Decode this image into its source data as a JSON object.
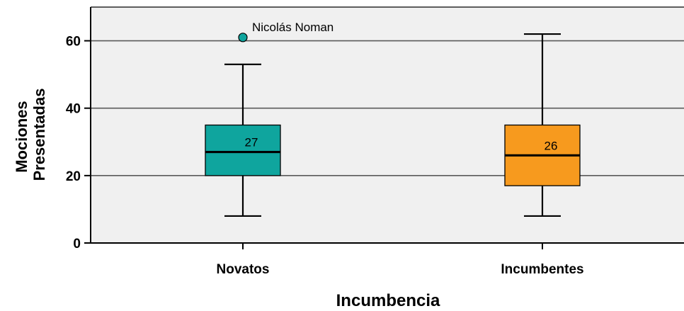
{
  "chart_data": {
    "type": "boxplot",
    "xlabel": "Incumbencia",
    "ylabel_lines": [
      "Mociones",
      "Presentadas"
    ],
    "ylim": [
      0,
      70
    ],
    "yticks": [
      0,
      20,
      40,
      60
    ],
    "grid": true,
    "categories": [
      "Novatos",
      "Incumbentes"
    ],
    "boxes": [
      {
        "category": "Novatos",
        "min": 8,
        "q1": 20,
        "median": 27,
        "q3": 35,
        "max": 53,
        "median_label": "27",
        "color": "#0fa59e",
        "outliers": [
          {
            "value": 61,
            "label": "Nicolás Noman"
          }
        ]
      },
      {
        "category": "Incumbentes",
        "min": 8,
        "q1": 17,
        "median": 26,
        "q3": 35,
        "max": 62,
        "median_label": "26",
        "color": "#f79a1e",
        "outliers": []
      }
    ],
    "colors": {
      "plot_background": "#f0f0f0",
      "grid": "#5a5a5a",
      "axis": "#000000"
    }
  }
}
